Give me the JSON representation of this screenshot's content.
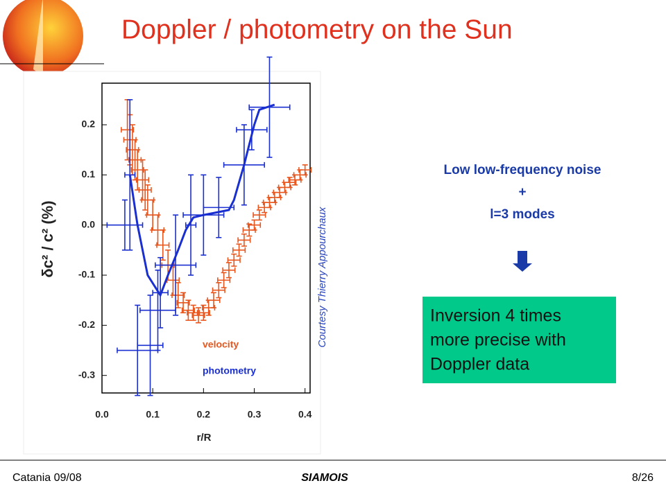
{
  "slide": {
    "title": "Doppler / photometry on the Sun",
    "notes": [
      "Low low-frequency noise",
      "+",
      "l=3 modes"
    ],
    "box": [
      "Inversion 4 times",
      "more precise with",
      "Doppler data"
    ],
    "credit": "Courtesy Thierry Appourchaux",
    "footer": {
      "left": "Catania 09/08",
      "center": "SIAMOIS",
      "right": "8/26"
    }
  },
  "chart_data": {
    "type": "errorbar",
    "xlabel": "r/R",
    "ylabel": "δc² / c² (%)",
    "xlim": [
      0,
      0.41
    ],
    "ylim": [
      -0.335,
      0.283
    ],
    "xticks": [
      {
        "value": 0,
        "label": "0.0"
      },
      0.1,
      0.2,
      0.3,
      0.4
    ],
    "yticks": [
      0.2,
      0.1,
      {
        "value": 0,
        "label": "0.0"
      },
      -0.1,
      -0.2,
      -0.3
    ],
    "series": [
      {
        "name": "velocity",
        "color": "#e8561e",
        "x": [
          0.05,
          0.055,
          0.06,
          0.065,
          0.07,
          0.08,
          0.085,
          0.09,
          0.1,
          0.11,
          0.12,
          0.13,
          0.14,
          0.15,
          0.16,
          0.17,
          0.18,
          0.19,
          0.2,
          0.21,
          0.22,
          0.23,
          0.24,
          0.25,
          0.26,
          0.27,
          0.28,
          0.29,
          0.3,
          0.31,
          0.32,
          0.33,
          0.34,
          0.35,
          0.36,
          0.37,
          0.38,
          0.39,
          0.4
        ],
        "values": [
          0.19,
          0.17,
          0.15,
          0.13,
          0.11,
          0.09,
          0.07,
          0.05,
          0.02,
          -0.01,
          -0.04,
          -0.08,
          -0.11,
          -0.14,
          -0.155,
          -0.17,
          -0.175,
          -0.18,
          -0.175,
          -0.165,
          -0.15,
          -0.13,
          -0.11,
          -0.09,
          -0.07,
          -0.05,
          -0.03,
          -0.01,
          0.0,
          0.02,
          0.035,
          0.045,
          0.055,
          0.065,
          0.075,
          0.085,
          0.09,
          0.1,
          0.11
        ],
        "xerr": 0.012,
        "yerr": [
          0.06,
          0.05,
          0.05,
          0.04,
          0.04,
          0.04,
          0.04,
          0.03,
          0.03,
          0.03,
          0.03,
          0.03,
          0.03,
          0.025,
          0.02,
          0.02,
          0.015,
          0.015,
          0.015,
          0.015,
          0.015,
          0.015,
          0.015,
          0.015,
          0.012,
          0.012,
          0.012,
          0.012,
          0.01,
          0.01,
          0.01,
          0.01,
          0.01,
          0.01,
          0.01,
          0.01,
          0.01,
          0.01,
          0.01
        ]
      },
      {
        "name": "photometry",
        "color": "#1a2fd0",
        "x": [
          0.055,
          0.045,
          0.07,
          0.095,
          0.11,
          0.115,
          0.145,
          0.175,
          0.2,
          0.23,
          0.28,
          0.295,
          0.33
        ],
        "values": [
          0.1,
          0.0,
          -0.25,
          -0.24,
          -0.17,
          -0.135,
          -0.08,
          0.0,
          0.02,
          0.035,
          0.12,
          0.19,
          0.235
        ],
        "xerr": [
          0.01,
          0.035,
          0.04,
          0.025,
          0.035,
          0.015,
          0.04,
          0.01,
          0.04,
          0.03,
          0.04,
          0.03,
          0.04
        ],
        "yerr": [
          0.15,
          0.05,
          0.09,
          0.1,
          0.08,
          0.07,
          0.1,
          0.1,
          0.08,
          0.06,
          0.08,
          0.04,
          0.1
        ]
      }
    ],
    "curve": {
      "color": "#1a2fd0",
      "x": [
        0.055,
        0.07,
        0.09,
        0.115,
        0.13,
        0.15,
        0.165,
        0.18,
        0.2,
        0.25,
        0.26,
        0.28,
        0.3,
        0.31,
        0.34
      ],
      "values": [
        0.1,
        0.0,
        -0.1,
        -0.14,
        -0.1,
        -0.05,
        -0.01,
        0.015,
        0.02,
        0.03,
        0.05,
        0.12,
        0.2,
        0.23,
        0.24
      ]
    }
  }
}
